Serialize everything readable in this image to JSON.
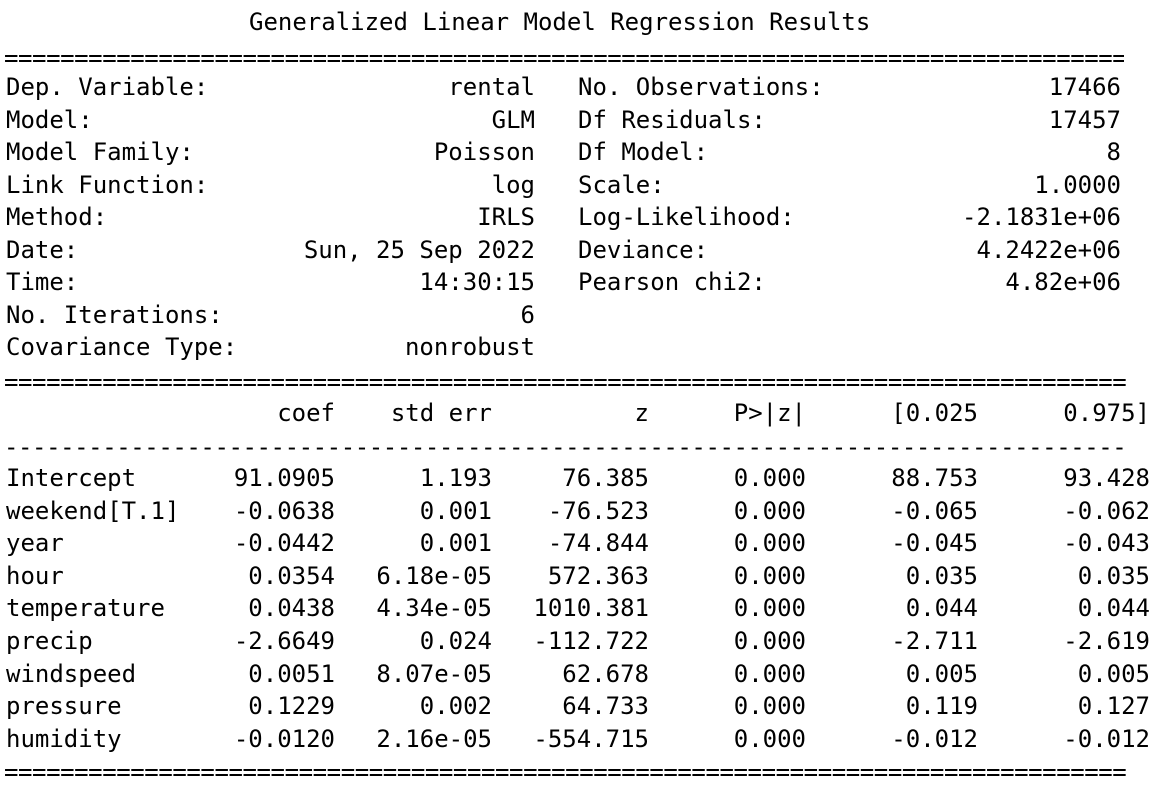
{
  "title": "Generalized Linear Model Regression Results",
  "rule_double": "================================================================================",
  "rule_single": "--------------------------------------------------------------------------------",
  "header_left": [
    {
      "label": "Dep. Variable:",
      "value": "rental"
    },
    {
      "label": "Model:",
      "value": "GLM"
    },
    {
      "label": "Model Family:",
      "value": "Poisson"
    },
    {
      "label": "Link Function:",
      "value": "log"
    },
    {
      "label": "Method:",
      "value": "IRLS"
    },
    {
      "label": "Date:",
      "value": "Sun, 25 Sep 2022"
    },
    {
      "label": "Time:",
      "value": "14:30:15"
    },
    {
      "label": "No. Iterations:",
      "value": "6"
    },
    {
      "label": "Covariance Type:",
      "value": "nonrobust"
    }
  ],
  "header_right": [
    {
      "label": "No. Observations:",
      "value": "17466"
    },
    {
      "label": "Df Residuals:",
      "value": "17457"
    },
    {
      "label": "Df Model:",
      "value": "8"
    },
    {
      "label": "Scale:",
      "value": "1.0000"
    },
    {
      "label": "Log-Likelihood:",
      "value": "-2.1831e+06"
    },
    {
      "label": "Deviance:",
      "value": "4.2422e+06"
    },
    {
      "label": "Pearson chi2:",
      "value": "4.82e+06"
    }
  ],
  "coef_table": {
    "columns": [
      "coef",
      "std err",
      "z",
      "P>|z|",
      "[0.025",
      "0.975]"
    ],
    "rows": [
      {
        "name": "Intercept",
        "cells": [
          "91.0905",
          "1.193",
          "76.385",
          "0.000",
          "88.753",
          "93.428"
        ]
      },
      {
        "name": "weekend[T.1]",
        "cells": [
          "-0.0638",
          "0.001",
          "-76.523",
          "0.000",
          "-0.065",
          "-0.062"
        ]
      },
      {
        "name": "year",
        "cells": [
          "-0.0442",
          "0.001",
          "-74.844",
          "0.000",
          "-0.045",
          "-0.043"
        ]
      },
      {
        "name": "hour",
        "cells": [
          "0.0354",
          "6.18e-05",
          "572.363",
          "0.000",
          "0.035",
          "0.035"
        ]
      },
      {
        "name": "temperature",
        "cells": [
          "0.0438",
          "4.34e-05",
          "1010.381",
          "0.000",
          "0.044",
          "0.044"
        ]
      },
      {
        "name": "precip",
        "cells": [
          "-2.6649",
          "0.024",
          "-112.722",
          "0.000",
          "-2.711",
          "-2.619"
        ]
      },
      {
        "name": "windspeed",
        "cells": [
          "0.0051",
          "8.07e-05",
          "62.678",
          "0.000",
          "0.005",
          "0.005"
        ]
      },
      {
        "name": "pressure",
        "cells": [
          "0.1229",
          "0.002",
          "64.733",
          "0.000",
          "0.119",
          "0.127"
        ]
      },
      {
        "name": "humidity",
        "cells": [
          "-0.0120",
          "2.16e-05",
          "-554.715",
          "0.000",
          "-0.012",
          "-0.012"
        ]
      }
    ]
  }
}
